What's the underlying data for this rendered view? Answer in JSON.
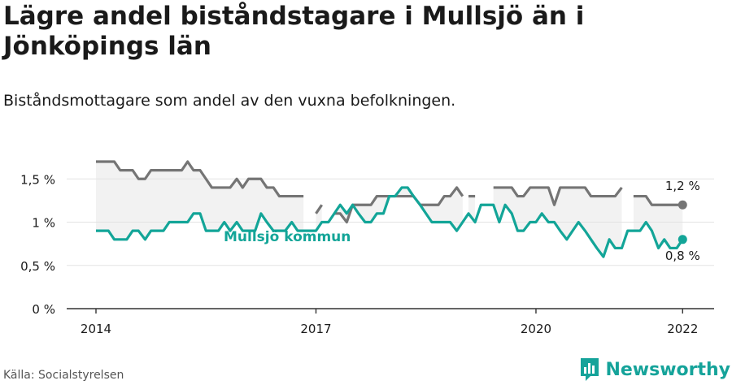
{
  "title": "Lägre andel biståndstagare i Mullsjö än i Jönköpings län",
  "subtitle": "Biståndsmottagare som andel av den vuxna befolkningen.",
  "source": "Källa: Socialstyrelsen",
  "brand": "Newsworthy",
  "colors": {
    "kommun": "#13a598",
    "lan": "#757575",
    "band": "#f2f2f2",
    "grid": "#e3e3e3",
    "axis": "#333333",
    "text": "#1a1a1a"
  },
  "chart_data": {
    "type": "line",
    "title": "Lägre andel biståndstagare i Mullsjö än i Jönköpings län",
    "subtitle": "Biståndsmottagare som andel av den vuxna befolkningen.",
    "xlabel": "",
    "ylabel": "",
    "xlim": [
      2014,
      2022.03
    ],
    "ylim": [
      0,
      1.85
    ],
    "x_ticks": [
      2014,
      2017,
      2020,
      2022
    ],
    "x_tick_labels": [
      "2014",
      "2017",
      "2020",
      "2022"
    ],
    "y_ticks": [
      0,
      0.5,
      1,
      1.5
    ],
    "y_tick_labels": [
      "0 %",
      "0,5 %",
      "1 %",
      "1,5 %"
    ],
    "grid": "horizontal",
    "series": [
      {
        "name": "",
        "color": "#757575",
        "end_label": "1,2 %",
        "segments": [
          [
            [
              2014.0,
              1.7
            ],
            [
              2014.08,
              1.7
            ],
            [
              2014.17,
              1.7
            ],
            [
              2014.25,
              1.7
            ],
            [
              2014.33,
              1.6
            ],
            [
              2014.42,
              1.6
            ],
            [
              2014.5,
              1.6
            ],
            [
              2014.58,
              1.5
            ],
            [
              2014.67,
              1.5
            ],
            [
              2014.75,
              1.6
            ],
            [
              2014.83,
              1.6
            ],
            [
              2014.92,
              1.6
            ],
            [
              2015.0,
              1.6
            ],
            [
              2015.08,
              1.6
            ],
            [
              2015.17,
              1.6
            ],
            [
              2015.25,
              1.7
            ],
            [
              2015.33,
              1.6
            ],
            [
              2015.42,
              1.6
            ],
            [
              2015.5,
              1.5
            ],
            [
              2015.58,
              1.4
            ],
            [
              2015.67,
              1.4
            ],
            [
              2015.75,
              1.4
            ],
            [
              2015.83,
              1.4
            ],
            [
              2015.92,
              1.5
            ],
            [
              2016.0,
              1.4
            ],
            [
              2016.08,
              1.5
            ],
            [
              2016.17,
              1.5
            ],
            [
              2016.25,
              1.5
            ],
            [
              2016.33,
              1.4
            ],
            [
              2016.42,
              1.4
            ],
            [
              2016.5,
              1.3
            ],
            [
              2016.58,
              1.3
            ],
            [
              2016.67,
              1.3
            ],
            [
              2016.75,
              1.3
            ],
            [
              2016.83,
              1.3
            ]
          ],
          [
            [
              2017.0,
              1.1
            ],
            [
              2017.08,
              1.2
            ]
          ],
          [
            [
              2017.25,
              1.1
            ],
            [
              2017.33,
              1.1
            ],
            [
              2017.42,
              1.0
            ],
            [
              2017.5,
              1.2
            ],
            [
              2017.58,
              1.2
            ],
            [
              2017.67,
              1.2
            ],
            [
              2017.75,
              1.2
            ],
            [
              2017.83,
              1.3
            ],
            [
              2017.92,
              1.3
            ],
            [
              2018.0,
              1.3
            ],
            [
              2018.08,
              1.3
            ],
            [
              2018.17,
              1.3
            ],
            [
              2018.25,
              1.3
            ],
            [
              2018.33,
              1.3
            ],
            [
              2018.42,
              1.2
            ],
            [
              2018.5,
              1.2
            ],
            [
              2018.58,
              1.2
            ],
            [
              2018.67,
              1.2
            ],
            [
              2018.75,
              1.3
            ],
            [
              2018.83,
              1.3
            ],
            [
              2018.92,
              1.4
            ],
            [
              2019.0,
              1.3
            ]
          ],
          [
            [
              2019.08,
              1.3
            ],
            [
              2019.17,
              1.3
            ]
          ],
          [
            [
              2019.42,
              1.4
            ],
            [
              2019.5,
              1.4
            ],
            [
              2019.58,
              1.4
            ],
            [
              2019.67,
              1.4
            ],
            [
              2019.75,
              1.3
            ],
            [
              2019.83,
              1.3
            ],
            [
              2019.92,
              1.4
            ],
            [
              2020.0,
              1.4
            ],
            [
              2020.08,
              1.4
            ],
            [
              2020.17,
              1.4
            ],
            [
              2020.25,
              1.2
            ],
            [
              2020.33,
              1.4
            ],
            [
              2020.42,
              1.4
            ],
            [
              2020.5,
              1.4
            ],
            [
              2020.58,
              1.4
            ],
            [
              2020.67,
              1.4
            ],
            [
              2020.75,
              1.3
            ],
            [
              2020.83,
              1.3
            ],
            [
              2020.92,
              1.3
            ],
            [
              2021.0,
              1.3
            ],
            [
              2021.08,
              1.3
            ],
            [
              2021.17,
              1.4
            ]
          ],
          [
            [
              2021.33,
              1.3
            ],
            [
              2021.42,
              1.3
            ],
            [
              2021.5,
              1.3
            ],
            [
              2021.58,
              1.2
            ],
            [
              2021.67,
              1.2
            ],
            [
              2021.75,
              1.2
            ],
            [
              2021.83,
              1.2
            ],
            [
              2021.92,
              1.2
            ],
            [
              2022.0,
              1.2
            ]
          ]
        ]
      },
      {
        "name": "Mullsjö kommun",
        "color": "#13a598",
        "end_label": "0,8 %",
        "segments": [
          [
            [
              2014.0,
              0.9
            ],
            [
              2014.08,
              0.9
            ],
            [
              2014.17,
              0.9
            ],
            [
              2014.25,
              0.8
            ],
            [
              2014.33,
              0.8
            ],
            [
              2014.42,
              0.8
            ],
            [
              2014.5,
              0.9
            ],
            [
              2014.58,
              0.9
            ],
            [
              2014.67,
              0.8
            ],
            [
              2014.75,
              0.9
            ],
            [
              2014.83,
              0.9
            ],
            [
              2014.92,
              0.9
            ],
            [
              2015.0,
              1.0
            ],
            [
              2015.08,
              1.0
            ],
            [
              2015.17,
              1.0
            ],
            [
              2015.25,
              1.0
            ],
            [
              2015.33,
              1.1
            ],
            [
              2015.42,
              1.1
            ],
            [
              2015.5,
              0.9
            ],
            [
              2015.58,
              0.9
            ],
            [
              2015.67,
              0.9
            ],
            [
              2015.75,
              1.0
            ],
            [
              2015.83,
              0.9
            ],
            [
              2015.92,
              1.0
            ],
            [
              2016.0,
              0.9
            ],
            [
              2016.08,
              0.9
            ],
            [
              2016.17,
              0.9
            ],
            [
              2016.25,
              1.1
            ],
            [
              2016.33,
              1.0
            ],
            [
              2016.42,
              0.9
            ],
            [
              2016.5,
              0.9
            ],
            [
              2016.58,
              0.9
            ],
            [
              2016.67,
              1.0
            ],
            [
              2016.75,
              0.9
            ],
            [
              2016.83,
              0.9
            ],
            [
              2016.92,
              0.9
            ],
            [
              2017.0,
              0.9
            ],
            [
              2017.08,
              1.0
            ],
            [
              2017.17,
              1.0
            ],
            [
              2017.25,
              1.1
            ],
            [
              2017.33,
              1.2
            ],
            [
              2017.42,
              1.1
            ],
            [
              2017.5,
              1.2
            ],
            [
              2017.58,
              1.1
            ],
            [
              2017.67,
              1.0
            ],
            [
              2017.75,
              1.0
            ],
            [
              2017.83,
              1.1
            ],
            [
              2017.92,
              1.1
            ],
            [
              2018.0,
              1.3
            ],
            [
              2018.08,
              1.3
            ],
            [
              2018.17,
              1.4
            ],
            [
              2018.25,
              1.4
            ],
            [
              2018.33,
              1.3
            ],
            [
              2018.42,
              1.2
            ],
            [
              2018.5,
              1.1
            ],
            [
              2018.58,
              1.0
            ],
            [
              2018.67,
              1.0
            ],
            [
              2018.75,
              1.0
            ],
            [
              2018.83,
              1.0
            ],
            [
              2018.92,
              0.9
            ],
            [
              2019.0,
              1.0
            ],
            [
              2019.08,
              1.1
            ],
            [
              2019.17,
              1.0
            ],
            [
              2019.25,
              1.2
            ],
            [
              2019.33,
              1.2
            ],
            [
              2019.42,
              1.2
            ],
            [
              2019.5,
              1.0
            ],
            [
              2019.58,
              1.2
            ],
            [
              2019.67,
              1.1
            ],
            [
              2019.75,
              0.9
            ],
            [
              2019.83,
              0.9
            ],
            [
              2019.92,
              1.0
            ],
            [
              2020.0,
              1.0
            ],
            [
              2020.08,
              1.1
            ],
            [
              2020.17,
              1.0
            ],
            [
              2020.25,
              1.0
            ],
            [
              2020.33,
              0.9
            ],
            [
              2020.42,
              0.8
            ],
            [
              2020.5,
              0.9
            ],
            [
              2020.58,
              1.0
            ],
            [
              2020.67,
              0.9
            ],
            [
              2020.75,
              0.8
            ],
            [
              2020.83,
              0.7
            ],
            [
              2020.92,
              0.6
            ],
            [
              2021.0,
              0.8
            ],
            [
              2021.08,
              0.7
            ],
            [
              2021.17,
              0.7
            ],
            [
              2021.25,
              0.9
            ],
            [
              2021.33,
              0.9
            ],
            [
              2021.42,
              0.9
            ],
            [
              2021.5,
              1.0
            ],
            [
              2021.58,
              0.9
            ],
            [
              2021.67,
              0.7
            ],
            [
              2021.75,
              0.8
            ],
            [
              2021.83,
              0.7
            ],
            [
              2021.92,
              0.7
            ],
            [
              2022.0,
              0.8
            ]
          ]
        ]
      }
    ]
  }
}
